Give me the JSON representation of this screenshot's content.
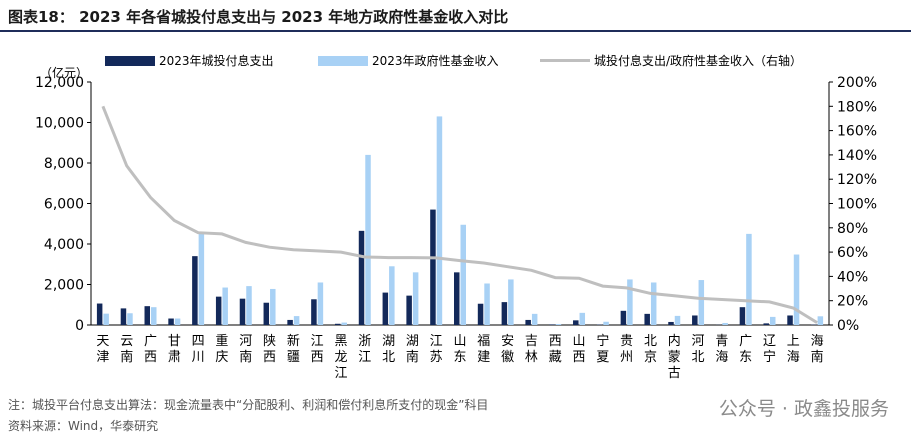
{
  "title": "图表18： 2023 年各省城投付息支出与 2023 年地方政府性基金收入对比",
  "footnote": "注：城投平台付息支出算法：现金流量表中“分配股利、利润和偿付利息所支付的现金”科目",
  "source": "资料来源：Wind，华泰研究",
  "watermark": "公众号 · 政鑫投服务",
  "colors": {
    "interest": "#13295a",
    "fund": "#a8d1f5",
    "ratio": "#bfbfbf",
    "title_rule": "#1f2d5a"
  },
  "chart_data": {
    "type": "bar",
    "unit_label": "（亿元）",
    "categories": [
      "天津",
      "云南",
      "广西",
      "甘肃",
      "四川",
      "重庆",
      "河南",
      "陕西",
      "新疆",
      "江西",
      "黑龙江",
      "浙江",
      "湖北",
      "湖南",
      "江苏",
      "山东",
      "福建",
      "安徽",
      "吉林",
      "西藏",
      "山西",
      "宁夏",
      "贵州",
      "北京",
      "内蒙古",
      "河北",
      "青海",
      "广东",
      "辽宁",
      "上海",
      "海南"
    ],
    "series": [
      {
        "name": "2023年城投付息支出",
        "type": "bar",
        "axis": "left",
        "values": [
          1060,
          820,
          930,
          320,
          3400,
          1400,
          1300,
          1100,
          250,
          1270,
          60,
          4650,
          1600,
          1450,
          5700,
          2600,
          1050,
          1130,
          250,
          30,
          230,
          20,
          700,
          550,
          150,
          470,
          10,
          880,
          80,
          470,
          20
        ]
      },
      {
        "name": "2023年政府性基金收入",
        "type": "bar",
        "axis": "left",
        "values": [
          560,
          580,
          880,
          320,
          4500,
          1850,
          1920,
          1780,
          440,
          2100,
          120,
          8400,
          2900,
          2600,
          10300,
          4950,
          2050,
          2250,
          550,
          50,
          600,
          160,
          2250,
          2100,
          450,
          2220,
          100,
          4500,
          400,
          3480,
          430
        ]
      },
      {
        "name": "城投付息支出/政府性基金收入（右轴）",
        "type": "line",
        "axis": "right",
        "values": [
          180,
          131,
          105,
          86,
          76,
          75,
          68,
          64,
          62,
          61,
          60,
          56,
          55.5,
          55.5,
          55.2,
          53,
          51,
          48,
          45,
          39,
          38.5,
          32,
          30.5,
          26,
          24,
          22,
          21,
          20,
          19,
          14,
          2
        ]
      }
    ],
    "y_left": {
      "min": 0,
      "max": 12000,
      "ticks": [
        "0",
        "2,000",
        "4,000",
        "6,000",
        "8,000",
        "10,000",
        "12,000"
      ]
    },
    "y_right": {
      "min": 0,
      "max": 200,
      "ticks": [
        "0%",
        "20%",
        "40%",
        "60%",
        "80%",
        "100%",
        "120%",
        "140%",
        "160%",
        "180%",
        "200%"
      ]
    },
    "grid": false,
    "legend_position": "top"
  }
}
